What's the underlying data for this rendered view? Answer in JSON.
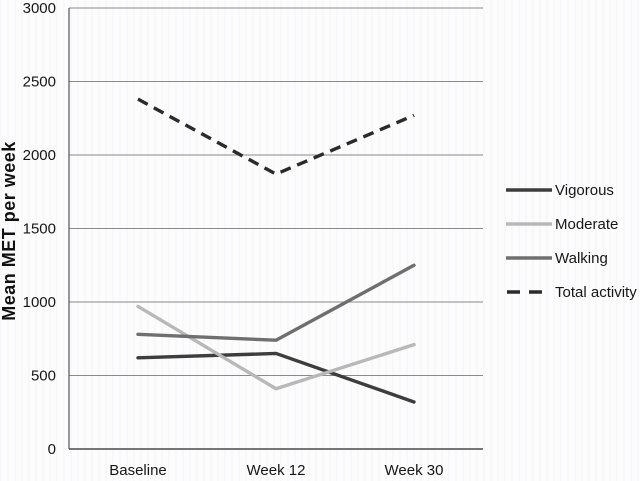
{
  "figure": {
    "background": "#fcfcfd"
  },
  "chart_data": {
    "type": "line",
    "title": "",
    "ylabel": "Mean MET per week",
    "xlabel": "",
    "categories": [
      "Baseline",
      "Week 12",
      "Week 30"
    ],
    "series": [
      {
        "name": "Vigorous",
        "values": [
          620,
          650,
          320
        ],
        "color": "#3d3d3d",
        "style": "solid"
      },
      {
        "name": "Moderate",
        "values": [
          970,
          410,
          710
        ],
        "color": "#b8b8b8",
        "style": "solid"
      },
      {
        "name": "Walking",
        "values": [
          780,
          740,
          1250
        ],
        "color": "#6f6f6f",
        "style": "solid"
      },
      {
        "name": "Total activity",
        "values": [
          2380,
          1870,
          2270
        ],
        "color": "#2b2b2b",
        "style": "dashed"
      }
    ],
    "ylim": [
      0,
      3000
    ],
    "yticks": [
      0,
      500,
      1000,
      1500,
      2000,
      2500,
      3000
    ],
    "grid": true,
    "legend_position": "right"
  },
  "colors": {
    "grid": "#8a8a8a",
    "axis": "#555555",
    "baseline_axis": "#4a4a4a",
    "text": "#161616"
  }
}
